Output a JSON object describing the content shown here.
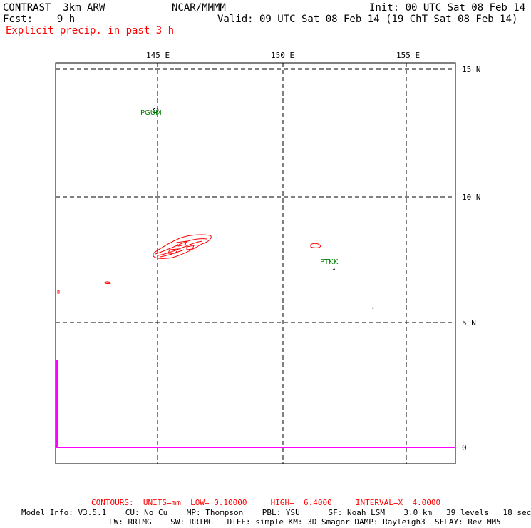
{
  "header": {
    "model": "CONTRAST  3km ARW",
    "org": "NCAR/MMMM",
    "init": "Init: 00 UTC Sat 08 Feb 14",
    "fcst": "Fcst:    9 h",
    "valid": "Valid: 09 UTC Sat 08 Feb 14 (19 ChT Sat 08 Feb 14)",
    "field": "Explicit precip. in past 3 h"
  },
  "map": {
    "lon_labels": [
      "145 E",
      "150 E",
      "155 E"
    ],
    "lat_labels": [
      "15 N",
      "10 N",
      "5 N",
      "0"
    ],
    "stations": [
      "PGUM",
      "PTKK"
    ],
    "colors": {
      "contour": "#ff0000",
      "coast": "#000000",
      "grid": "#000000",
      "station": "#008000",
      "line": "#ff00ff"
    }
  },
  "footer": {
    "contours": "CONTOURS:  UNITS=mm  LOW= 0.10000     HIGH=  6.4000     INTERVAL=X  4.0000",
    "model_info_1": "Model Info: V3.5.1    CU: No Cu    MP: Thompson    PBL: YSU      SF: Noah LSM    3.0 km   39 levels   18 sec",
    "model_info_2": "LW: RRTMG    SW: RRTMG   DIFF: simple KM: 3D Smagor DAMP: Rayleigh3  SFLAY: Rev MM5"
  }
}
